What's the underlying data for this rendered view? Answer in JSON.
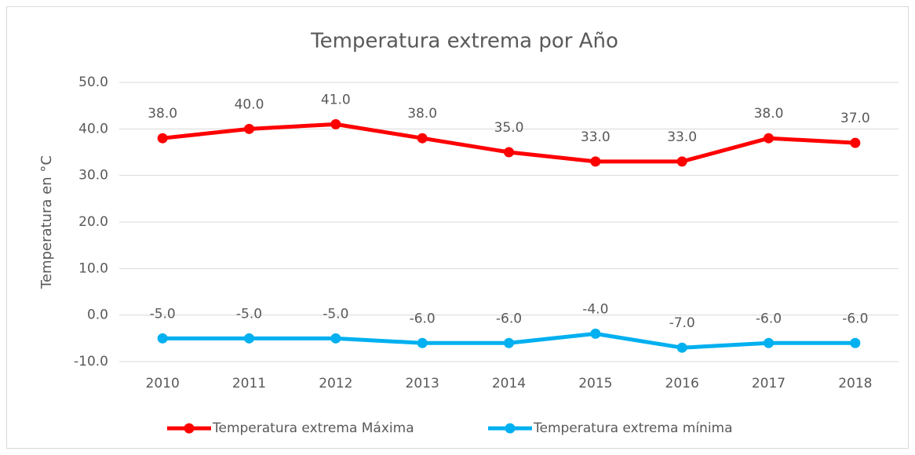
{
  "chart_data": {
    "type": "line",
    "title": "Temperatura  extrema por Año",
    "y_label": "Temperatura en °C",
    "categories": [
      "2010",
      "2011",
      "2012",
      "2013",
      "2014",
      "2015",
      "2016",
      "2017",
      "2018"
    ],
    "series": [
      {
        "name": "Temperatura extrema Máxima",
        "color": "#ff0000",
        "values": [
          38,
          40,
          41,
          38,
          35,
          33,
          33,
          38,
          37
        ],
        "value_labels": [
          "38.0",
          "40.0",
          "41.0",
          "38.0",
          "35.0",
          "33.0",
          "33.0",
          "38.0",
          "37.0"
        ]
      },
      {
        "name": "Temperatura extrema mínima",
        "color": "#00b0f0",
        "values": [
          -5,
          -5,
          -5,
          -6,
          -6,
          -4,
          -7,
          -6,
          -6
        ],
        "value_labels": [
          "-5.0",
          "-5.0",
          "-5.0",
          "-6.0",
          "-6.0",
          "-4.0",
          "-7.0",
          "-6.0",
          "-6.0"
        ]
      }
    ],
    "ylim": [
      -10,
      50
    ],
    "yticks": [
      {
        "value": -10,
        "label": "-10.0"
      },
      {
        "value": 0,
        "label": "0.0"
      },
      {
        "value": 10,
        "label": "10.0"
      },
      {
        "value": 20,
        "label": "20.0"
      },
      {
        "value": 30,
        "label": "30.0"
      },
      {
        "value": 40,
        "label": "40.0"
      },
      {
        "value": 50,
        "label": "50.0"
      }
    ],
    "grid": true,
    "legend": "bottom"
  }
}
